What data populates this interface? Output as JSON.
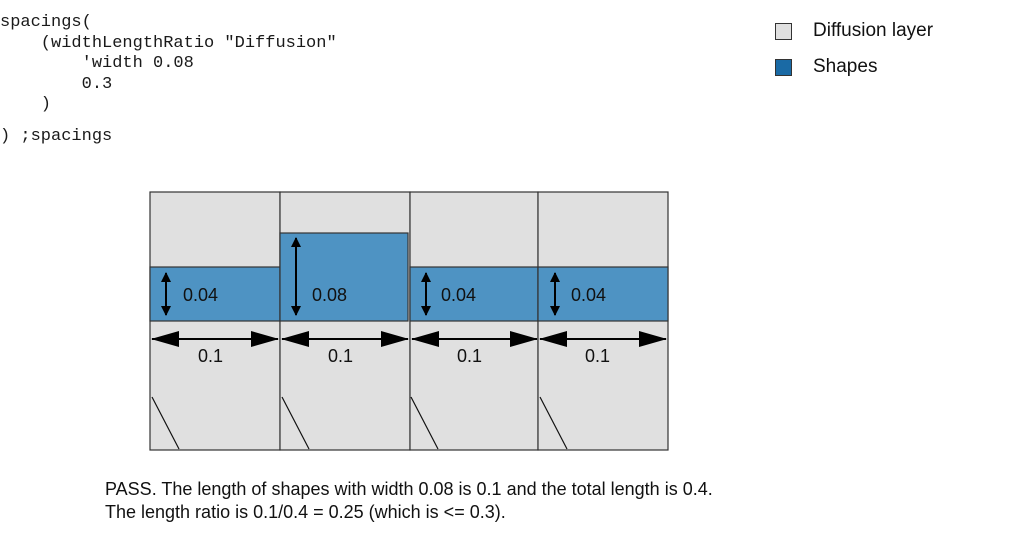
{
  "code": {
    "lines": [
      "spacings(",
      "    (widthLengthRatio \"Diffusion\"",
      "        'width 0.08",
      "        0.3",
      "    )",
      ") ;spacings"
    ]
  },
  "legend": [
    {
      "label": "Diffusion layer",
      "color": "#e0e0e0"
    },
    {
      "label": "Shapes",
      "color": "#1a6aa5"
    }
  ],
  "colors": {
    "diffusion": "#e0e0e0",
    "shape": "#4e93c3",
    "outline": "#333333"
  },
  "diagram": {
    "cells": [
      {
        "width_label": "0.04",
        "length_label": "0.1"
      },
      {
        "width_label": "0.08",
        "length_label": "0.1"
      },
      {
        "width_label": "0.04",
        "length_label": "0.1"
      },
      {
        "width_label": "0.04",
        "length_label": "0.1"
      }
    ]
  },
  "caption": {
    "line1": "PASS. The length of shapes with width 0.08 is 0.1 and the total length is 0.4.",
    "line2": "The length ratio is 0.1/0.4 = 0.25 (which is <= 0.3)."
  }
}
